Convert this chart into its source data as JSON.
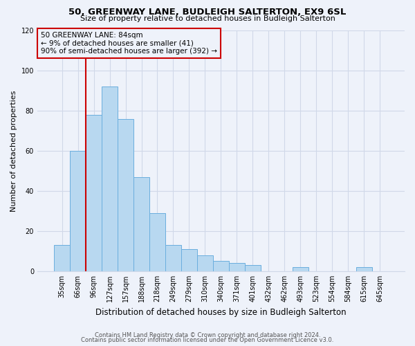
{
  "title1": "50, GREENWAY LANE, BUDLEIGH SALTERTON, EX9 6SL",
  "title2": "Size of property relative to detached houses in Budleigh Salterton",
  "xlabel": "Distribution of detached houses by size in Budleigh Salterton",
  "ylabel": "Number of detached properties",
  "bar_labels": [
    "35sqm",
    "66sqm",
    "96sqm",
    "127sqm",
    "157sqm",
    "188sqm",
    "218sqm",
    "249sqm",
    "279sqm",
    "310sqm",
    "340sqm",
    "371sqm",
    "401sqm",
    "432sqm",
    "462sqm",
    "493sqm",
    "523sqm",
    "554sqm",
    "584sqm",
    "615sqm",
    "645sqm"
  ],
  "bar_values": [
    13,
    60,
    78,
    92,
    76,
    47,
    29,
    13,
    11,
    8,
    5,
    4,
    3,
    0,
    0,
    2,
    0,
    0,
    0,
    2,
    0
  ],
  "bar_color": "#b8d8f0",
  "bar_edge_color": "#6aaede",
  "vline_color": "#cc0000",
  "vline_x_idx": 1.5,
  "ylim": [
    0,
    120
  ],
  "yticks": [
    0,
    20,
    40,
    60,
    80,
    100,
    120
  ],
  "annotation_text_line1": "50 GREENWAY LANE: 84sqm",
  "annotation_text_line2": "← 9% of detached houses are smaller (41)",
  "annotation_text_line3": "90% of semi-detached houses are larger (392) →",
  "footer1": "Contains HM Land Registry data © Crown copyright and database right 2024.",
  "footer2": "Contains public sector information licensed under the Open Government Licence v3.0.",
  "background_color": "#eef2fa",
  "grid_color": "#d0d8e8",
  "title1_fontsize": 9.5,
  "title2_fontsize": 8.0,
  "xlabel_fontsize": 8.5,
  "ylabel_fontsize": 8.0,
  "tick_fontsize": 7.0,
  "ann_fontsize": 7.5,
  "footer_fontsize": 6.0
}
